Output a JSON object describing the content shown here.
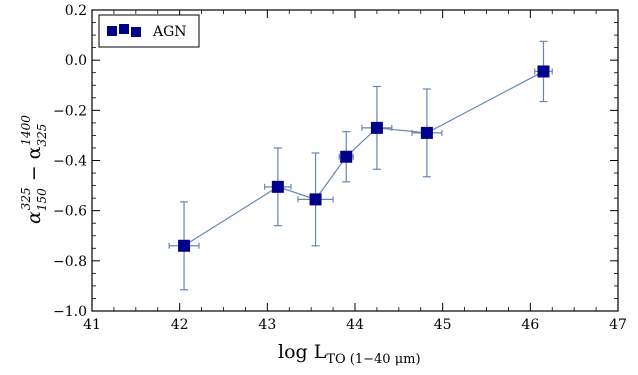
{
  "chart_data": {
    "type": "scatter",
    "xlabel": "log L",
    "xlabel_sub": "TO (1−40 μm)",
    "ylabel_main": "α",
    "ylabel_sub1": "150",
    "ylabel_sup1": "325",
    "ylabel_minus": " − α",
    "ylabel_sub2": "325",
    "ylabel_sup2": "1400",
    "xlim": [
      41,
      47
    ],
    "ylim": [
      -1.0,
      0.2
    ],
    "x_ticks": [
      41,
      42,
      43,
      44,
      45,
      46,
      47
    ],
    "y_ticks": [
      -1.0,
      -0.8,
      -0.6,
      -0.4,
      -0.2,
      0.0,
      0.2
    ],
    "x_tick_labels": [
      "41",
      "42",
      "43",
      "44",
      "45",
      "46",
      "47"
    ],
    "y_tick_labels": [
      "−1.0",
      "−0.8",
      "−0.6",
      "−0.4",
      "−0.2",
      "0.0",
      "0.2"
    ],
    "grid": false,
    "legend_position": "top-left",
    "series": [
      {
        "name": "AGN",
        "marker": "square",
        "color": "#00008b",
        "line_color": "#6a84b8",
        "x": [
          42.05,
          43.12,
          43.55,
          43.9,
          44.25,
          44.82,
          46.15
        ],
        "y": [
          -0.74,
          -0.505,
          -0.555,
          -0.385,
          -0.27,
          -0.29,
          -0.045
        ],
        "x_err": [
          0.17,
          0.15,
          0.2,
          0.08,
          0.17,
          0.17,
          0.1
        ],
        "y_err": [
          0.175,
          0.155,
          0.185,
          0.1,
          0.165,
          0.175,
          0.12
        ]
      }
    ],
    "legend": [
      {
        "label": "AGN"
      }
    ]
  }
}
